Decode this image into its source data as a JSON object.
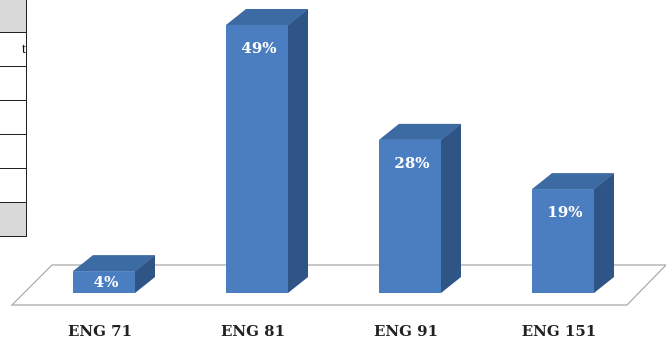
{
  "side_table": {
    "rows": [
      "",
      "t",
      "",
      "",
      "",
      "",
      ""
    ]
  },
  "chart_data": {
    "type": "bar",
    "categories": [
      "ENG 71",
      "ENG 81",
      "ENG 91",
      "ENG 151"
    ],
    "values": [
      4,
      49,
      28,
      19
    ],
    "data_labels": [
      "4%",
      "49%",
      "28%",
      "19%"
    ],
    "title": "",
    "xlabel": "",
    "ylabel": "",
    "ylim": [
      0,
      49
    ],
    "grid": false,
    "legend": "none",
    "style": "3d-column",
    "colors": {
      "bar_front": "#4a7ec1",
      "bar_side": "#2f5587",
      "bar_top": "#3c6aa3",
      "floor_stroke": "#a8a8a8"
    }
  }
}
